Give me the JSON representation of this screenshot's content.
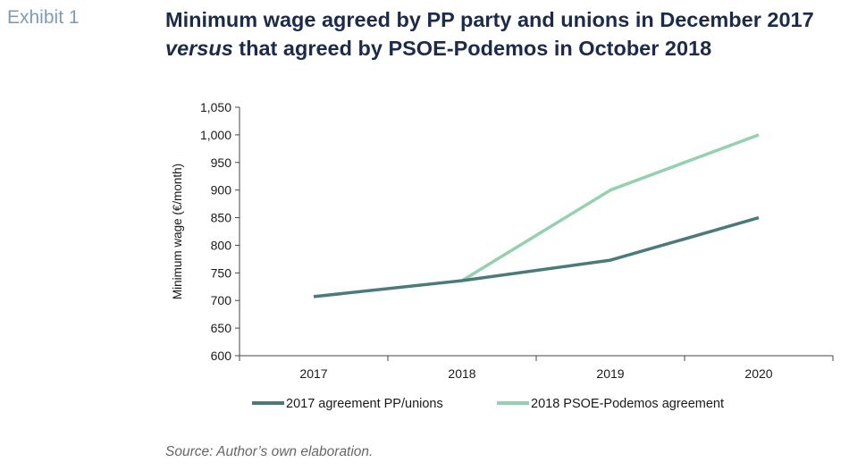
{
  "exhibit_label": "Exhibit 1",
  "title": {
    "part1": "Minimum wage agreed by PP party and unions in December 2017 ",
    "italic": "versus",
    "part2": " that agreed by PSOE-Podemos in October 2018"
  },
  "source": "Source: Author’s own elaboration.",
  "colors": {
    "series1": "#4a7b7a",
    "series2": "#93d1b0"
  },
  "chart_data": {
    "type": "line",
    "categories": [
      "2017",
      "2018",
      "2019",
      "2020"
    ],
    "ylabel": "Minimum wage (€/month)",
    "xlabel": "",
    "ylim": [
      600,
      1050
    ],
    "yticks": [
      600,
      650,
      700,
      750,
      800,
      850,
      900,
      950,
      1000,
      1050
    ],
    "ytick_labels": [
      "600",
      "650",
      "700",
      "750",
      "800",
      "850",
      "900",
      "950",
      "1,000",
      "1,050"
    ],
    "grid": false,
    "legend_position": "bottom",
    "series": [
      {
        "name": "2017 agreement PP/unions",
        "values": [
          707,
          736,
          773,
          850
        ]
      },
      {
        "name": "2018 PSOE-Podemos agreement",
        "values": [
          null,
          736,
          900,
          1000
        ]
      }
    ]
  }
}
